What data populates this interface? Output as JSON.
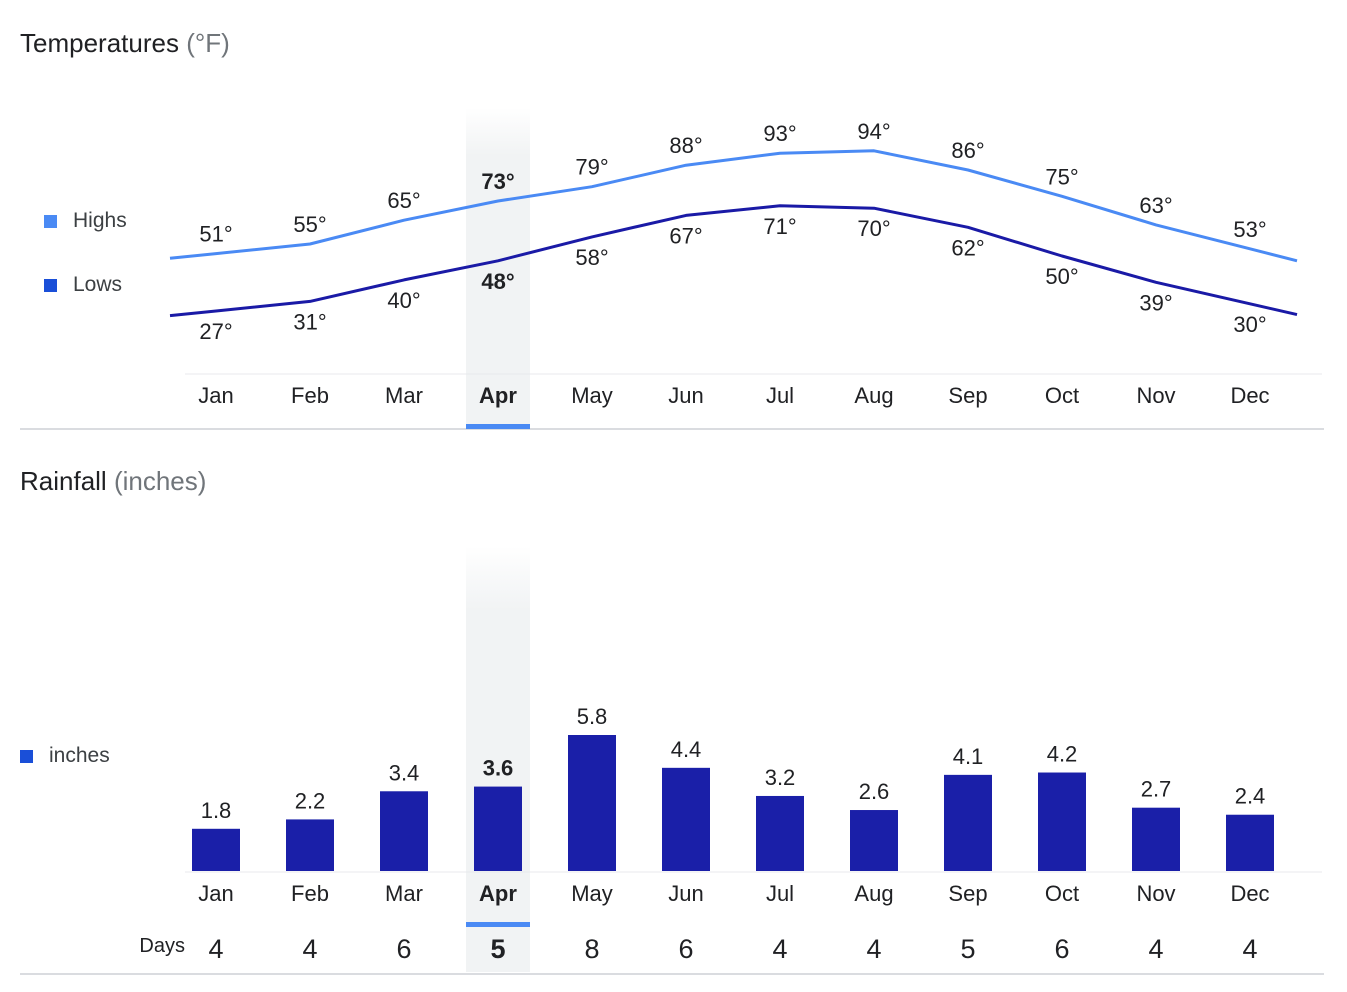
{
  "temperature": {
    "title": "Temperatures",
    "unit": "(°F)",
    "legend": {
      "highs_label": "Highs",
      "lows_label": "Lows",
      "highs_color": "#4a8af4",
      "lows_color": "#1a1aa6"
    }
  },
  "rainfall": {
    "title": "Rainfall",
    "unit": "(inches)",
    "legend": {
      "label": "inches",
      "color": "#1a1fa8"
    },
    "days_label": "Days"
  },
  "selected_month": "Apr",
  "highlight_color": "#4a8af4",
  "chart_data": [
    {
      "type": "line",
      "title": "Temperatures (°F)",
      "categories": [
        "Jan",
        "Feb",
        "Mar",
        "Apr",
        "May",
        "Jun",
        "Jul",
        "Aug",
        "Sep",
        "Oct",
        "Nov",
        "Dec"
      ],
      "series": [
        {
          "name": "Highs",
          "values": [
            51,
            55,
            65,
            73,
            79,
            88,
            93,
            94,
            86,
            75,
            63,
            53
          ],
          "labels": [
            "51°",
            "55°",
            "65°",
            "73°",
            "79°",
            "88°",
            "93°",
            "94°",
            "86°",
            "75°",
            "63°",
            "53°"
          ]
        },
        {
          "name": "Lows",
          "values": [
            27,
            31,
            40,
            48,
            58,
            67,
            71,
            70,
            62,
            50,
            39,
            30
          ],
          "labels": [
            "27°",
            "31°",
            "40°",
            "48°",
            "58°",
            "67°",
            "71°",
            "70°",
            "62°",
            "50°",
            "39°",
            "30°"
          ]
        }
      ]
    },
    {
      "type": "bar",
      "title": "Rainfall (inches)",
      "categories": [
        "Jan",
        "Feb",
        "Mar",
        "Apr",
        "May",
        "Jun",
        "Jul",
        "Aug",
        "Sep",
        "Oct",
        "Nov",
        "Dec"
      ],
      "values": [
        1.8,
        2.2,
        3.4,
        3.6,
        5.8,
        4.4,
        3.2,
        2.6,
        4.1,
        4.2,
        2.7,
        2.4
      ],
      "labels": [
        "1.8",
        "2.2",
        "3.4",
        "3.6",
        "5.8",
        "4.4",
        "3.2",
        "2.6",
        "4.1",
        "4.2",
        "2.7",
        "2.4"
      ],
      "days": [
        "4",
        "4",
        "6",
        "5",
        "8",
        "6",
        "4",
        "4",
        "5",
        "6",
        "4",
        "4"
      ],
      "ylim": [
        0,
        5.8
      ]
    }
  ]
}
